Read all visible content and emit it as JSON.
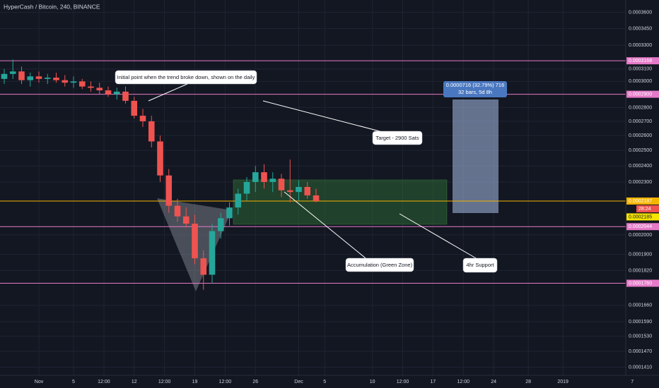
{
  "chart_data": {
    "type": "candlestick",
    "title": "HyperCash / Bitcoin, 240, BINANCE",
    "up_color": "#26a69a",
    "down_color": "#ef5350",
    "log_scale": true,
    "grid": true,
    "xlim": [
      -4.49,
      68.57
    ],
    "ylim": [
      0.000138,
      0.000372
    ],
    "x": [
      -4,
      -3,
      -2,
      -1,
      0,
      1,
      2,
      3,
      4,
      5,
      6,
      7,
      8,
      9,
      10,
      11,
      12,
      13,
      14,
      15,
      16,
      17,
      18,
      19,
      20,
      21,
      22,
      23,
      24,
      25,
      26,
      27,
      28,
      29,
      30,
      31,
      32
    ],
    "open": [
      0.000302,
      0.000306,
      0.000308,
      0.000301,
      0.000304,
      0.000302,
      0.000303,
      0.000301,
      0.000299,
      0.0003,
      0.000296,
      0.000295,
      0.000293,
      0.00029,
      0.000292,
      0.000285,
      0.000274,
      0.00027,
      0.000256,
      0.000234,
      0.000216,
      0.00021,
      0.000206,
      0.000188,
      0.00018,
      0.000202,
      0.000209,
      0.000215,
      0.000223,
      0.00023,
      0.000236,
      0.00023,
      0.000232,
      0.000225,
      0.000224,
      0.000227,
      0.000222
    ],
    "high": [
      0.00031,
      0.000318,
      0.000312,
      0.000307,
      0.000308,
      0.000306,
      0.000307,
      0.000305,
      0.000304,
      0.000302,
      0.0003,
      0.000299,
      0.000296,
      0.000295,
      0.000296,
      0.000288,
      0.000279,
      0.000274,
      0.00026,
      0.000238,
      0.00022,
      0.000215,
      0.000211,
      0.000192,
      0.000206,
      0.000212,
      0.000218,
      0.000226,
      0.000233,
      0.00024,
      0.000241,
      0.000236,
      0.000235,
      0.000244,
      0.000231,
      0.00023,
      0.000226
    ],
    "low": [
      0.000298,
      0.000302,
      0.000298,
      0.000296,
      0.000299,
      0.000298,
      0.000299,
      0.000296,
      0.000295,
      0.000294,
      0.000292,
      0.00029,
      0.000288,
      0.000286,
      0.000283,
      0.000272,
      0.000266,
      0.000252,
      0.00023,
      0.000212,
      0.000207,
      0.000204,
      0.000185,
      0.000173,
      0.000176,
      0.000198,
      0.000205,
      0.000211,
      0.000219,
      0.000224,
      0.000226,
      0.000224,
      0.000221,
      0.000218,
      0.000219,
      0.00022,
      0.000218
    ],
    "close": [
      0.000306,
      0.000308,
      0.000301,
      0.000304,
      0.000302,
      0.000303,
      0.000301,
      0.000299,
      0.0003,
      0.000296,
      0.000295,
      0.000293,
      0.00029,
      0.000292,
      0.000285,
      0.000274,
      0.00027,
      0.000256,
      0.000234,
      0.000216,
      0.00021,
      0.000206,
      0.000188,
      0.00018,
      0.000202,
      0.000209,
      0.000215,
      0.000223,
      0.00023,
      0.000236,
      0.00023,
      0.000232,
      0.000225,
      0.000224,
      0.000227,
      0.000222,
      0.0002187
    ],
    "yticks": [
      {
        "value": 0.00036,
        "label": "0.0003600"
      },
      {
        "value": 0.000345,
        "label": "0.0003450"
      },
      {
        "value": 0.00033,
        "label": "0.0003300"
      },
      {
        "value": 0.00031,
        "label": "0.0003100"
      },
      {
        "value": 0.0003,
        "label": "0.0003000"
      },
      {
        "value": 0.00028,
        "label": "0.0002800"
      },
      {
        "value": 0.00027,
        "label": "0.0002700"
      },
      {
        "value": 0.00026,
        "label": "0.0002600"
      },
      {
        "value": 0.00025,
        "label": "0.0002500"
      },
      {
        "value": 0.00024,
        "label": "0.0002400"
      },
      {
        "value": 0.00023,
        "label": "0.0002300"
      },
      {
        "value": 0.0002,
        "label": "0.0002000"
      },
      {
        "value": 0.00019,
        "label": "0.0001900"
      },
      {
        "value": 0.000182,
        "label": "0.0001820"
      },
      {
        "value": 0.000166,
        "label": "0.0001660"
      },
      {
        "value": 0.000159,
        "label": "0.0001590"
      },
      {
        "value": 0.000153,
        "label": "0.0001530"
      },
      {
        "value": 0.000147,
        "label": "0.0001470"
      },
      {
        "value": 0.000141,
        "label": "0.0001410"
      }
    ],
    "xticks": [
      {
        "value": 0,
        "label": "Nov"
      },
      {
        "value": 4,
        "label": "5"
      },
      {
        "value": 7.5,
        "label": "12:00"
      },
      {
        "value": 11,
        "label": "12"
      },
      {
        "value": 14.5,
        "label": "12:00"
      },
      {
        "value": 18,
        "label": "19"
      },
      {
        "value": 21.5,
        "label": "12:00"
      },
      {
        "value": 25,
        "label": "26"
      },
      {
        "value": 30,
        "label": "Dec"
      },
      {
        "value": 33,
        "label": "5"
      },
      {
        "value": 38.5,
        "label": "10"
      },
      {
        "value": 42,
        "label": "12:00"
      },
      {
        "value": 45.5,
        "label": "17"
      },
      {
        "value": 49,
        "label": "12:00"
      },
      {
        "value": 52.5,
        "label": "24"
      },
      {
        "value": 56.5,
        "label": "28"
      },
      {
        "value": 60.5,
        "label": "2019"
      },
      {
        "value": 68.5,
        "label": "7"
      }
    ],
    "levels": [
      {
        "value": 0.0003168,
        "label": "0.0003168",
        "color": "#e57ac8"
      },
      {
        "value": 0.00029,
        "label": "0.0002900",
        "color": "#e57ac8"
      },
      {
        "value": 0.0002044,
        "label": "0.0002044",
        "color": "#e57ac8"
      },
      {
        "value": 0.000176,
        "label": "0.0001760",
        "color": "#e57ac8"
      },
      {
        "value": 0.0002187,
        "label": "0.0002187",
        "color": "#f5b400"
      }
    ],
    "countdown": "28:24",
    "second_price": {
      "value": 0.0002185,
      "label": "0.0002185"
    },
    "measure": {
      "line1": "0.0000716 (32.79%) 716",
      "line2": "32 bars, 5d 8h"
    },
    "annotations": [
      "Initial point when the trend broke down, shown on the daily",
      "Target - 2900 Sats",
      "Accumulation (Green Zone)",
      "4hr Support"
    ]
  }
}
